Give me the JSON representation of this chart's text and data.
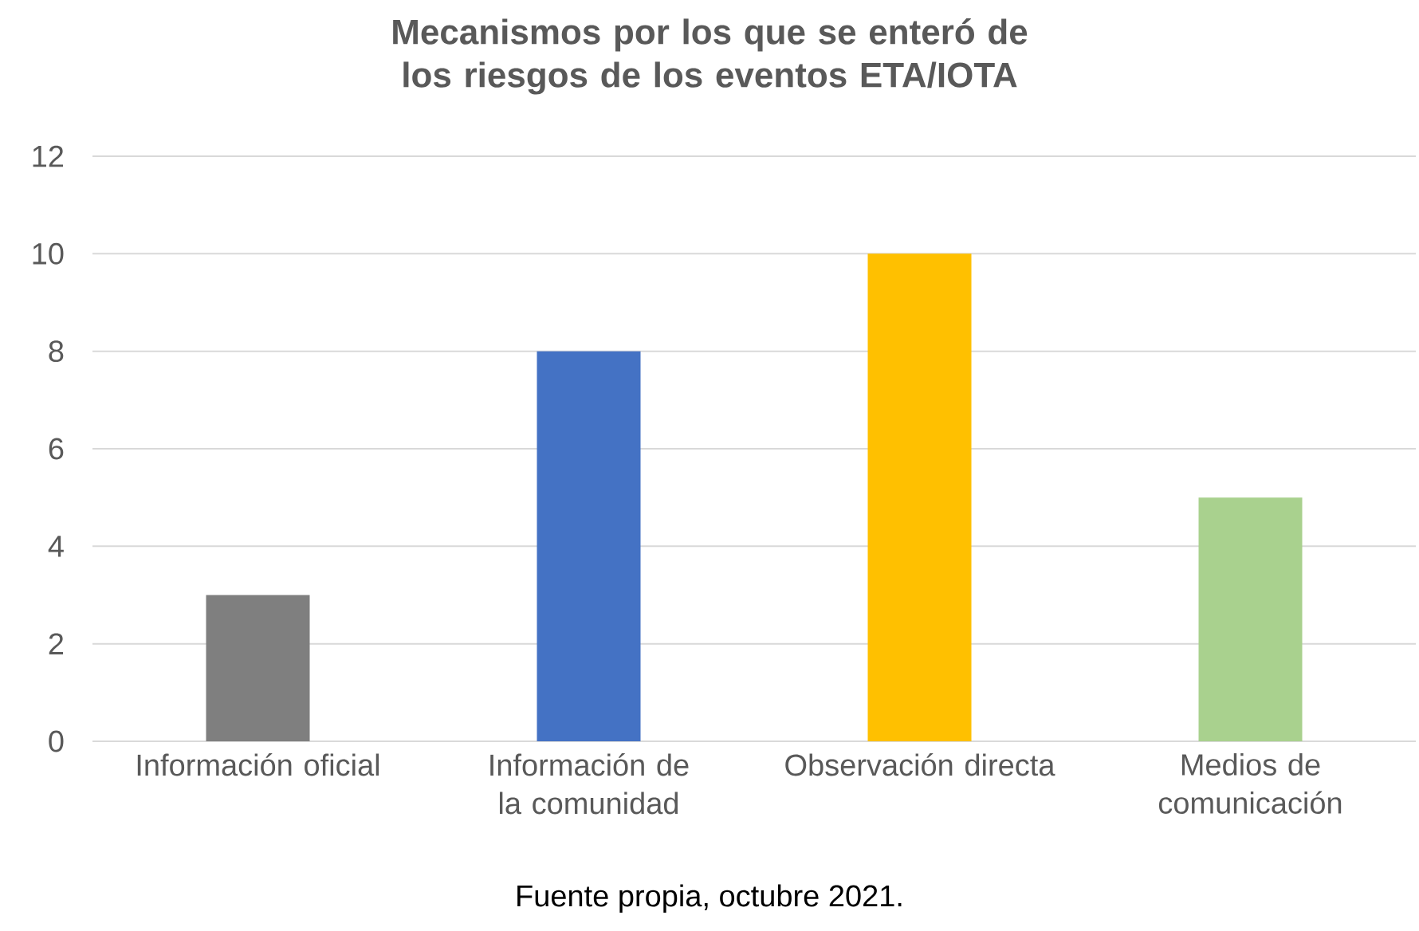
{
  "chart_data": {
    "type": "bar",
    "title": "Mecanismos por los que se enteró de los riesgos de los eventos ETA/IOTA",
    "categories": [
      "Información oficial",
      "Información de la comunidad",
      "Observación directa",
      "Medios de comunicación"
    ],
    "values": [
      3,
      8,
      10,
      5
    ],
    "colors": [
      "#7f7f7f",
      "#4472c4",
      "#ffc000",
      "#a9d18e"
    ],
    "ylim": [
      0,
      12
    ],
    "yticks": [
      0,
      2,
      4,
      6,
      8,
      10,
      12
    ],
    "grid": "y",
    "annotations": [
      "Fuente propia, octubre 2021."
    ]
  }
}
